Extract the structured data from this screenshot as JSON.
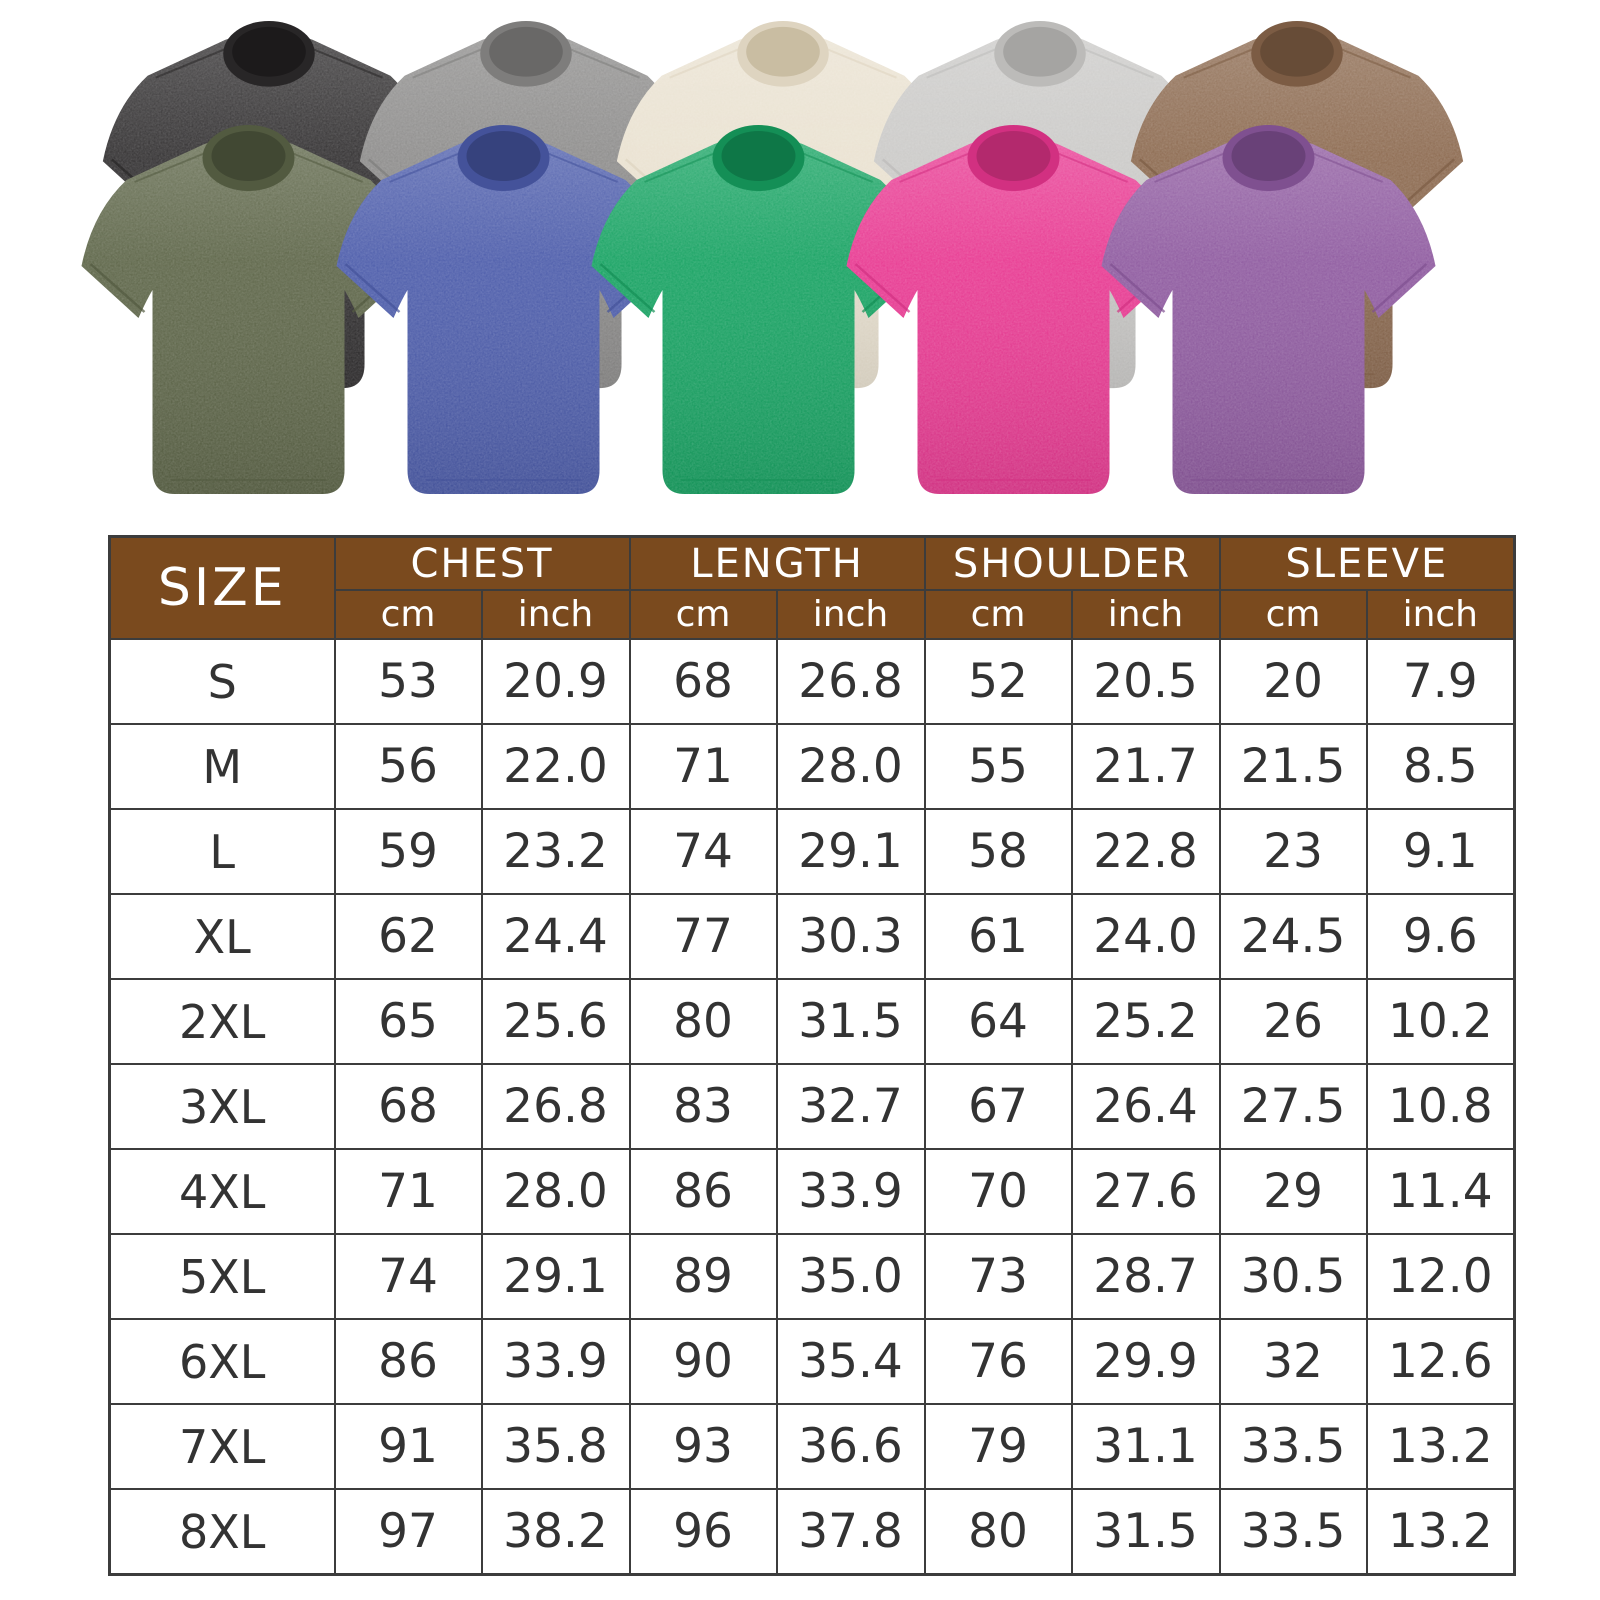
{
  "page": {
    "background": "#ffffff"
  },
  "gallery": {
    "description": "ten washed-cotton oversized t-shirts shown in two overlapping rows",
    "shirts": [
      {
        "name": "black",
        "row": "back",
        "body": "#343233",
        "collar": "#282627",
        "neck": "#1c1a1b"
      },
      {
        "name": "gray",
        "row": "back",
        "body": "#8e8d8c",
        "collar": "#7e7d7c",
        "neck": "#696867"
      },
      {
        "name": "cream",
        "row": "back",
        "body": "#eae2d1",
        "collar": "#ded4c0",
        "neck": "#c9bda2"
      },
      {
        "name": "light-gray",
        "row": "back",
        "body": "#cbcac8",
        "collar": "#bcbbb9",
        "neck": "#a5a4a2"
      },
      {
        "name": "brown",
        "row": "back",
        "body": "#8d6b51",
        "collar": "#7c5c44",
        "neck": "#674c37"
      },
      {
        "name": "army-green",
        "row": "front",
        "body": "#5e6649",
        "collar": "#525a40",
        "neck": "#414833"
      },
      {
        "name": "blue",
        "row": "front",
        "body": "#4d5dab",
        "collar": "#44529a",
        "neck": "#36427d"
      },
      {
        "name": "green",
        "row": "front",
        "body": "#18a363",
        "collar": "#148f56",
        "neck": "#0e7747"
      },
      {
        "name": "rose",
        "row": "front",
        "body": "#e83a92",
        "collar": "#d23081",
        "neck": "#b3296d"
      },
      {
        "name": "purple",
        "row": "front",
        "body": "#8f5ba0",
        "collar": "#7f5090",
        "neck": "#694178"
      }
    ]
  },
  "size_chart": {
    "size_label": "SIZE",
    "groups": [
      "CHEST",
      "LENGTH",
      "SHOULDER",
      "SLEEVE"
    ],
    "units": [
      "cm",
      "inch"
    ],
    "rows": [
      {
        "size": "S",
        "values": [
          "53",
          "20.9",
          "68",
          "26.8",
          "52",
          "20.5",
          "20",
          "7.9"
        ]
      },
      {
        "size": "M",
        "values": [
          "56",
          "22.0",
          "71",
          "28.0",
          "55",
          "21.7",
          "21.5",
          "8.5"
        ]
      },
      {
        "size": "L",
        "values": [
          "59",
          "23.2",
          "74",
          "29.1",
          "58",
          "22.8",
          "23",
          "9.1"
        ]
      },
      {
        "size": "XL",
        "values": [
          "62",
          "24.4",
          "77",
          "30.3",
          "61",
          "24.0",
          "24.5",
          "9.6"
        ]
      },
      {
        "size": "2XL",
        "values": [
          "65",
          "25.6",
          "80",
          "31.5",
          "64",
          "25.2",
          "26",
          "10.2"
        ]
      },
      {
        "size": "3XL",
        "values": [
          "68",
          "26.8",
          "83",
          "32.7",
          "67",
          "26.4",
          "27.5",
          "10.8"
        ]
      },
      {
        "size": "4XL",
        "values": [
          "71",
          "28.0",
          "86",
          "33.9",
          "70",
          "27.6",
          "29",
          "11.4"
        ]
      },
      {
        "size": "5XL",
        "values": [
          "74",
          "29.1",
          "89",
          "35.0",
          "73",
          "28.7",
          "30.5",
          "12.0"
        ]
      },
      {
        "size": "6XL",
        "values": [
          "86",
          "33.9",
          "90",
          "35.4",
          "76",
          "29.9",
          "32",
          "12.6"
        ]
      },
      {
        "size": "7XL",
        "values": [
          "91",
          "35.8",
          "93",
          "36.6",
          "79",
          "31.1",
          "33.5",
          "13.2"
        ]
      },
      {
        "size": "8XL",
        "values": [
          "97",
          "38.2",
          "96",
          "37.8",
          "80",
          "31.5",
          "33.5",
          "13.2"
        ]
      }
    ]
  },
  "colors": {
    "header_bg": "#7a4a1e",
    "header_text": "#ffffff",
    "table_border": "#3c3c3c",
    "cell_text": "#333333"
  }
}
